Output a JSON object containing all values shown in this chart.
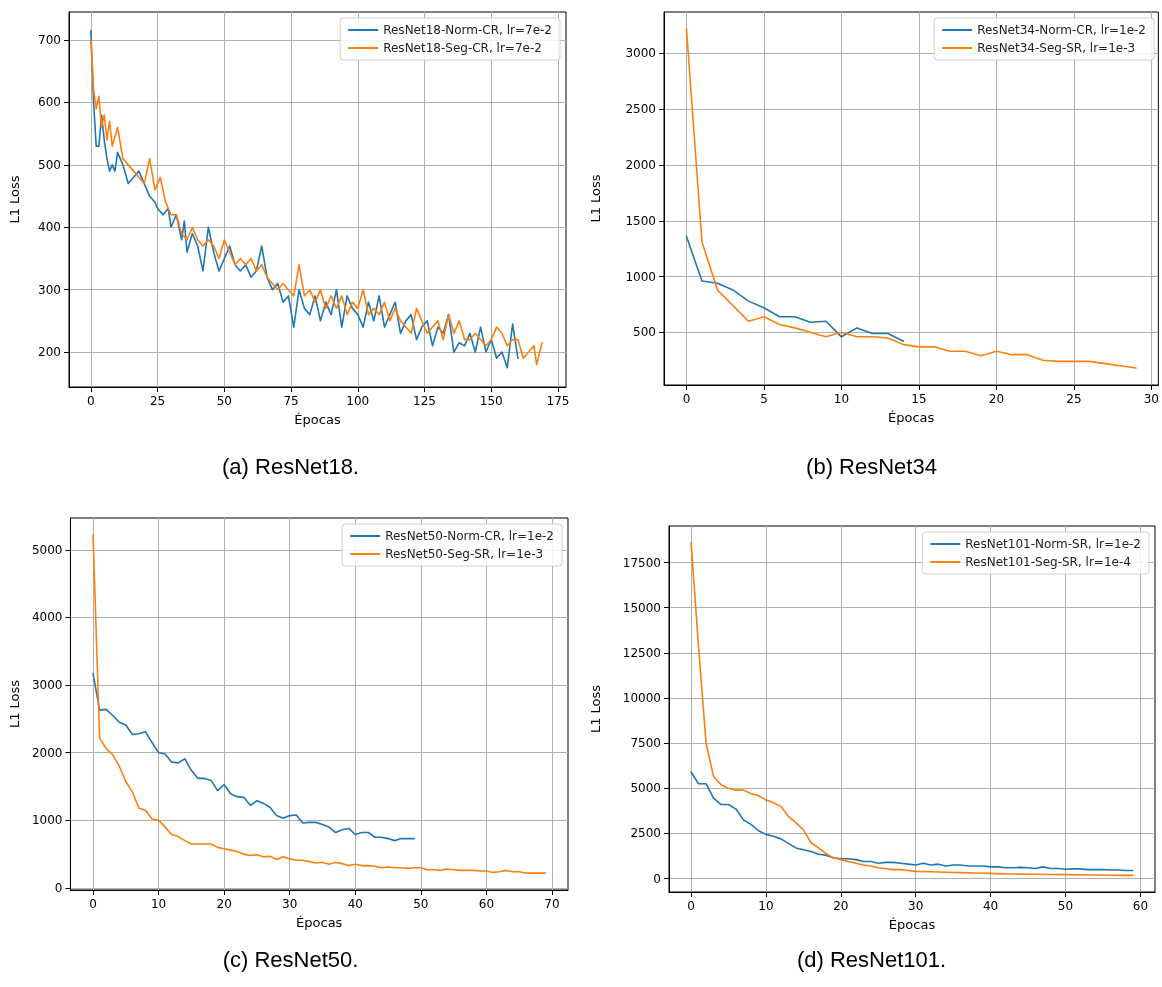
{
  "chart_data": [
    {
      "type": "line",
      "title": "(a) ResNet18.",
      "xlabel": "Épocas",
      "ylabel": "L1 Loss",
      "xlim": [
        -8.2,
        178
      ],
      "xticks": [
        0,
        25,
        50,
        75,
        100,
        125,
        150,
        175
      ],
      "ylim": [
        144,
        745
      ],
      "yticks": [
        200,
        300,
        400,
        500,
        600,
        700
      ],
      "grid": true,
      "legend": "top right",
      "series": [
        {
          "name": "ResNet18-Norm-CR, lr=7e-2",
          "color": "#1f77b4",
          "x": [
            0,
            1,
            2,
            3,
            4,
            5,
            6,
            7,
            8,
            9,
            10,
            12,
            14,
            16,
            18,
            20,
            22,
            24,
            25,
            27,
            29,
            30,
            32,
            34,
            35,
            36,
            38,
            40,
            42,
            44,
            46,
            48,
            50,
            52,
            54,
            56,
            58,
            60,
            62,
            64,
            66,
            68,
            70,
            72,
            74,
            76,
            78,
            80,
            82,
            84,
            86,
            88,
            90,
            92,
            94,
            96,
            98,
            100,
            102,
            104,
            106,
            108,
            110,
            112,
            114,
            116,
            118,
            120,
            122,
            124,
            126,
            128,
            130,
            132,
            134,
            136,
            138,
            140,
            142,
            144,
            146,
            148,
            150,
            152,
            154,
            156,
            158,
            160
          ],
          "values": [
            715,
            600,
            530,
            530,
            580,
            540,
            510,
            490,
            500,
            490,
            520,
            500,
            470,
            480,
            490,
            470,
            450,
            440,
            430,
            420,
            430,
            400,
            420,
            380,
            410,
            360,
            390,
            370,
            330,
            400,
            360,
            330,
            350,
            370,
            340,
            330,
            340,
            320,
            330,
            370,
            320,
            300,
            310,
            280,
            290,
            240,
            300,
            270,
            260,
            290,
            250,
            280,
            260,
            300,
            240,
            290,
            270,
            260,
            240,
            280,
            250,
            290,
            240,
            260,
            280,
            230,
            250,
            260,
            220,
            240,
            250,
            210,
            240,
            230,
            260,
            200,
            215,
            210,
            230,
            200,
            240,
            200,
            220,
            190,
            200,
            175,
            245,
            190
          ]
        },
        {
          "name": "ResNet18-Seg-CR, lr=7e-2",
          "color": "#ff7f0e",
          "x": [
            0,
            1,
            2,
            3,
            4,
            5,
            6,
            7,
            8,
            10,
            12,
            14,
            16,
            18,
            20,
            22,
            24,
            26,
            28,
            30,
            32,
            34,
            36,
            38,
            40,
            42,
            44,
            46,
            48,
            50,
            52,
            54,
            56,
            58,
            60,
            62,
            64,
            66,
            68,
            70,
            72,
            74,
            76,
            78,
            80,
            82,
            84,
            86,
            88,
            90,
            92,
            94,
            96,
            98,
            100,
            102,
            104,
            106,
            108,
            110,
            112,
            114,
            116,
            118,
            120,
            122,
            124,
            126,
            128,
            130,
            132,
            134,
            136,
            138,
            140,
            142,
            144,
            146,
            148,
            150,
            152,
            154,
            156,
            158,
            160,
            162,
            164,
            166,
            167,
            169
          ],
          "values": [
            700,
            620,
            590,
            610,
            560,
            580,
            540,
            570,
            530,
            560,
            510,
            500,
            490,
            480,
            470,
            510,
            460,
            480,
            440,
            420,
            420,
            390,
            380,
            400,
            380,
            370,
            380,
            370,
            350,
            380,
            360,
            340,
            350,
            340,
            350,
            330,
            340,
            320,
            310,
            300,
            310,
            300,
            290,
            340,
            290,
            300,
            280,
            300,
            270,
            290,
            270,
            290,
            260,
            280,
            270,
            300,
            260,
            270,
            260,
            280,
            250,
            270,
            250,
            240,
            230,
            270,
            250,
            230,
            240,
            250,
            220,
            260,
            230,
            250,
            220,
            220,
            230,
            220,
            210,
            220,
            240,
            230,
            210,
            220,
            220,
            190,
            200,
            210,
            180,
            215
          ]
        }
      ]
    },
    {
      "type": "line",
      "title": "(b) ResNet34",
      "xlabel": "Épocas",
      "ylabel": "L1 Loss",
      "xlim": [
        -1.45,
        30.45
      ],
      "xticks": [
        0,
        5,
        10,
        15,
        20,
        25,
        30
      ],
      "ylim": [
        28,
        3372
      ],
      "yticks": [
        500,
        1000,
        1500,
        2000,
        2500,
        3000
      ],
      "grid": true,
      "legend": "top right",
      "series": [
        {
          "name": "ResNet34-Norm-CR, lr=1e-2",
          "color": "#1f77b4",
          "x": [
            0,
            1,
            2,
            3,
            4,
            5,
            6,
            7,
            8,
            9,
            10,
            11,
            12,
            13,
            14
          ],
          "values": [
            1360,
            960,
            940,
            880,
            780,
            720,
            640,
            640,
            590,
            600,
            460,
            540,
            490,
            490,
            420
          ]
        },
        {
          "name": "ResNet34-Seg-SR, lr=1e-3",
          "color": "#ff7f0e",
          "x": [
            0,
            1,
            2,
            3,
            4,
            5,
            6,
            7,
            8,
            9,
            10,
            11,
            12,
            13,
            14,
            15,
            16,
            17,
            18,
            19,
            20,
            21,
            22,
            23,
            24,
            25,
            26,
            27,
            28,
            29
          ],
          "values": [
            3220,
            1310,
            880,
            740,
            600,
            640,
            570,
            540,
            500,
            460,
            500,
            460,
            460,
            450,
            390,
            370,
            370,
            330,
            330,
            290,
            330,
            300,
            300,
            250,
            240,
            240,
            240,
            220,
            200,
            180
          ]
        }
      ]
    },
    {
      "type": "line",
      "title": "(c) ResNet50.",
      "xlabel": "Épocas",
      "ylabel": "L1 Loss",
      "xlim": [
        -3.45,
        72.45
      ],
      "xticks": [
        0,
        10,
        20,
        30,
        40,
        50,
        60,
        70
      ],
      "ylim": [
        -30,
        5470
      ],
      "yticks": [
        0,
        1000,
        2000,
        3000,
        4000,
        5000
      ],
      "grid": true,
      "legend": "top right",
      "series": [
        {
          "name": "ResNet50-Norm-CR, lr=1e-2",
          "color": "#1f77b4",
          "x": [
            0,
            1,
            2,
            3,
            4,
            5,
            6,
            7,
            8,
            9,
            10,
            11,
            12,
            13,
            14,
            15,
            16,
            17,
            18,
            19,
            20,
            21,
            22,
            23,
            24,
            25,
            26,
            27,
            28,
            29,
            30,
            31,
            32,
            33,
            34,
            35,
            36,
            37,
            38,
            39,
            40,
            41,
            42,
            43,
            44,
            45,
            46,
            47,
            48,
            49
          ],
          "values": [
            3170,
            2630,
            2640,
            2550,
            2450,
            2410,
            2270,
            2280,
            2310,
            2150,
            2000,
            1980,
            1860,
            1850,
            1910,
            1740,
            1620,
            1620,
            1590,
            1440,
            1530,
            1390,
            1350,
            1340,
            1220,
            1290,
            1250,
            1190,
            1070,
            1030,
            1070,
            1080,
            960,
            970,
            970,
            940,
            900,
            820,
            860,
            880,
            790,
            820,
            820,
            750,
            750,
            730,
            700,
            730,
            730,
            730
          ]
        },
        {
          "name": "ResNet50-Seg-SR, lr=1e-3",
          "color": "#ff7f0e",
          "x": [
            0,
            1,
            2,
            3,
            4,
            5,
            6,
            7,
            8,
            9,
            10,
            11,
            12,
            13,
            14,
            15,
            16,
            17,
            18,
            19,
            20,
            21,
            22,
            23,
            24,
            25,
            26,
            27,
            28,
            29,
            30,
            31,
            32,
            33,
            34,
            35,
            36,
            37,
            38,
            39,
            40,
            41,
            42,
            43,
            44,
            45,
            46,
            47,
            48,
            49,
            50,
            51,
            52,
            53,
            54,
            55,
            56,
            57,
            58,
            59,
            60,
            61,
            62,
            63,
            64,
            65,
            66,
            67,
            68,
            69
          ],
          "values": [
            5220,
            2220,
            2060,
            1970,
            1800,
            1570,
            1420,
            1180,
            1150,
            1020,
            1000,
            900,
            790,
            760,
            700,
            650,
            650,
            650,
            650,
            600,
            580,
            560,
            540,
            500,
            480,
            490,
            460,
            470,
            420,
            460,
            430,
            410,
            410,
            390,
            370,
            380,
            350,
            380,
            360,
            330,
            350,
            330,
            330,
            320,
            300,
            310,
            300,
            300,
            290,
            300,
            300,
            270,
            270,
            260,
            280,
            270,
            260,
            260,
            260,
            250,
            250,
            230,
            240,
            260,
            240,
            240,
            220,
            220,
            220,
            220
          ]
        }
      ]
    },
    {
      "type": "line",
      "title": "(d) ResNet101.",
      "xlabel": "Épocas",
      "ylabel": "L1 Loss",
      "xlim": [
        -2.95,
        61.95
      ],
      "xticks": [
        0,
        10,
        20,
        30,
        40,
        50,
        60
      ],
      "ylim": [
        -741,
        19521
      ],
      "yticks": [
        0,
        2500,
        5000,
        7500,
        10000,
        12500,
        15000,
        17500
      ],
      "grid": true,
      "legend": "top right",
      "series": [
        {
          "name": "ResNet101-Norm-SR, lr=1e-2",
          "color": "#1f77b4",
          "x": [
            0,
            1,
            2,
            3,
            4,
            5,
            6,
            7,
            8,
            9,
            10,
            11,
            12,
            13,
            14,
            15,
            16,
            17,
            18,
            19,
            20,
            21,
            22,
            23,
            24,
            25,
            26,
            27,
            28,
            29,
            30,
            31,
            32,
            33,
            34,
            35,
            36,
            37,
            38,
            39,
            40,
            41,
            42,
            43,
            44,
            45,
            46,
            47,
            48,
            49,
            50,
            51,
            52,
            53,
            54,
            55,
            56,
            57,
            58,
            59
          ],
          "values": [
            5900,
            5250,
            5250,
            4450,
            4100,
            4100,
            3850,
            3250,
            3000,
            2650,
            2450,
            2350,
            2200,
            1950,
            1700,
            1600,
            1500,
            1350,
            1300,
            1150,
            1100,
            1100,
            1050,
            950,
            950,
            850,
            900,
            900,
            850,
            800,
            750,
            850,
            750,
            800,
            700,
            750,
            750,
            700,
            700,
            700,
            650,
            650,
            600,
            600,
            620,
            600,
            560,
            650,
            560,
            560,
            520,
            540,
            540,
            500,
            500,
            500,
            480,
            480,
            450,
            450
          ]
        },
        {
          "name": "ResNet101-Seg-SR, lr=1e-4",
          "color": "#ff7f0e",
          "x": [
            0,
            1,
            2,
            3,
            4,
            5,
            6,
            7,
            8,
            9,
            10,
            11,
            12,
            13,
            14,
            15,
            16,
            17,
            18,
            19,
            20,
            21,
            22,
            23,
            24,
            25,
            26,
            27,
            28,
            29,
            30,
            32,
            34,
            36,
            38,
            40,
            42,
            44,
            46,
            48,
            50,
            52,
            54,
            56,
            58,
            59
          ],
          "values": [
            18600,
            12800,
            7500,
            5650,
            5200,
            5000,
            4900,
            4900,
            4700,
            4600,
            4350,
            4200,
            4000,
            3450,
            3100,
            2700,
            2000,
            1700,
            1400,
            1150,
            1050,
            950,
            850,
            750,
            700,
            600,
            550,
            500,
            500,
            450,
            400,
            380,
            350,
            330,
            310,
            290,
            260,
            250,
            240,
            230,
            220,
            210,
            200,
            190,
            180,
            180
          ]
        }
      ]
    }
  ]
}
